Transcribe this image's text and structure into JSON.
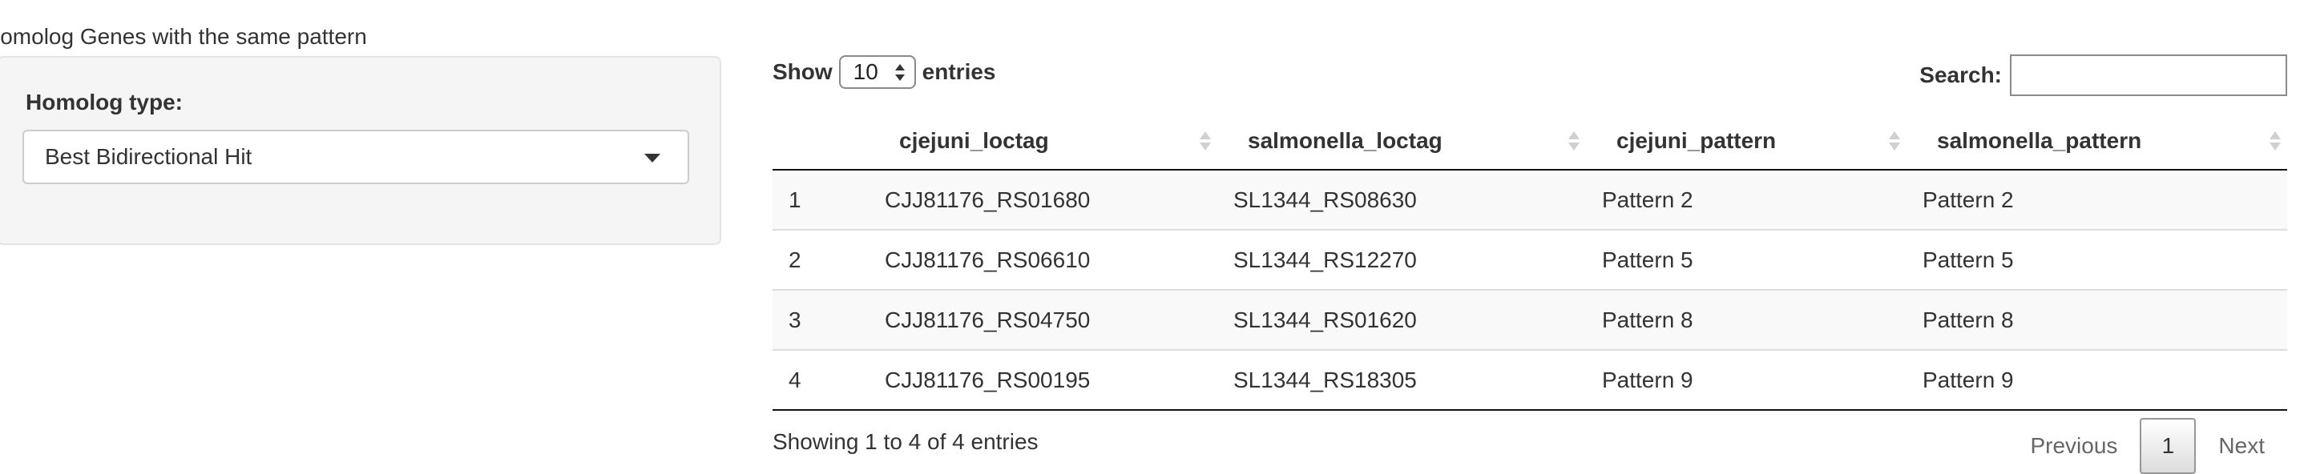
{
  "panel": {
    "title": "Homolog Genes with the same pattern",
    "field_label": "Homolog type:",
    "selected_option": "Best Bidirectional Hit"
  },
  "table_controls": {
    "show_label": "Show",
    "page_length": "10",
    "entries_label": "entries",
    "search_label": "Search:",
    "search_value": ""
  },
  "table": {
    "columns": [
      "",
      "cjejuni_loctag",
      "salmonella_loctag",
      "cjejuni_pattern",
      "salmonella_pattern"
    ],
    "rows": [
      [
        "1",
        "CJJ81176_RS01680",
        "SL1344_RS08630",
        "Pattern 2",
        "Pattern 2"
      ],
      [
        "2",
        "CJJ81176_RS06610",
        "SL1344_RS12270",
        "Pattern 5",
        "Pattern 5"
      ],
      [
        "3",
        "CJJ81176_RS04750",
        "SL1344_RS01620",
        "Pattern 8",
        "Pattern 8"
      ],
      [
        "4",
        "CJJ81176_RS00195",
        "SL1344_RS18305",
        "Pattern 9",
        "Pattern 9"
      ]
    ]
  },
  "footer": {
    "info": "Showing 1 to 4 of 4 entries",
    "previous": "Previous",
    "current_page": "1",
    "next": "Next"
  },
  "colors": {
    "well_background": "#f5f5f5",
    "striped_row": "#f9f9f9",
    "text": "#333333"
  }
}
